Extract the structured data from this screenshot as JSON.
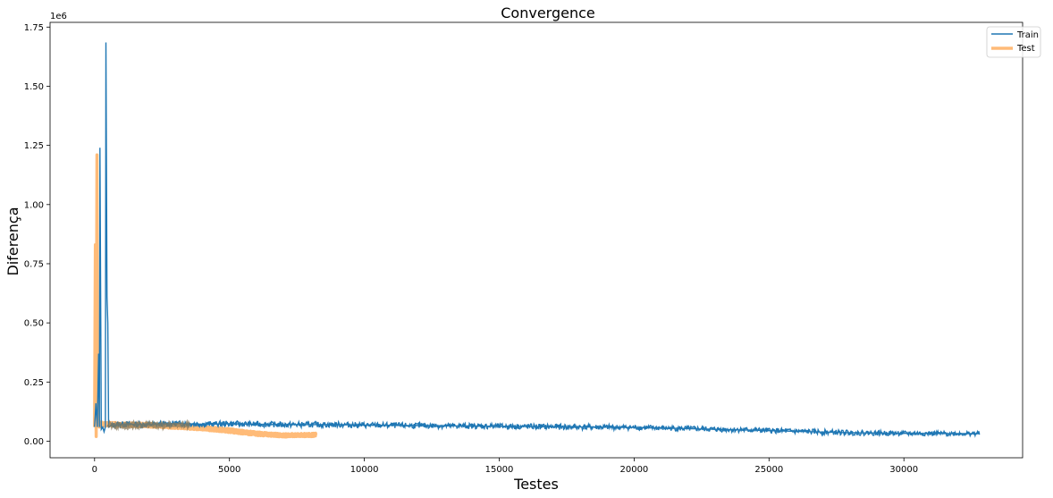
{
  "chart_data": {
    "type": "line",
    "title": "Convergence",
    "xlabel": "Testes",
    "ylabel": "Diferença",
    "y_offset_text": "1e6",
    "xlim": [
      -1650,
      34400
    ],
    "ylim": [
      -70000,
      1770000
    ],
    "x_ticks": [
      0,
      5000,
      10000,
      15000,
      20000,
      25000,
      30000
    ],
    "x_tick_labels": [
      "0",
      "5000",
      "10000",
      "15000",
      "20000",
      "25000",
      "30000"
    ],
    "y_ticks": [
      0,
      250000,
      500000,
      750000,
      1000000,
      1250000,
      1500000,
      1750000
    ],
    "y_tick_labels": [
      "0.00",
      "0.25",
      "0.50",
      "0.75",
      "1.00",
      "1.25",
      "1.50",
      "1.75"
    ],
    "grid": false,
    "legend": "upper right",
    "series": [
      {
        "name": "Train",
        "color": "#1f77b4",
        "x": [
          0,
          50,
          100,
          150,
          180,
          200,
          250,
          300,
          350,
          400,
          420,
          460,
          490,
          520,
          600,
          800,
          1000,
          2000,
          3000,
          4000,
          5000,
          6000,
          7000,
          8000,
          9000,
          10000,
          12000,
          14000,
          16000,
          18000,
          20000,
          22000,
          24000,
          26000,
          28000,
          30000,
          32000,
          32800
        ],
        "values": [
          60000,
          160000,
          60000,
          370000,
          60000,
          1240000,
          50000,
          60000,
          40000,
          60000,
          1685000,
          610000,
          500000,
          60000,
          65000,
          70000,
          72000,
          70000,
          75000,
          72000,
          74000,
          72000,
          70000,
          70000,
          70000,
          68000,
          66000,
          64000,
          62000,
          60000,
          58000,
          53000,
          48000,
          42000,
          36000,
          33000,
          32000,
          32000
        ],
        "noise": [
          0,
          0,
          0,
          0,
          0,
          0,
          0,
          0,
          0,
          0,
          0,
          0,
          0,
          0,
          12000,
          12000,
          12000,
          12000,
          12000,
          12000,
          12000,
          12000,
          12000,
          12000,
          12000,
          12000,
          12000,
          12000,
          12000,
          12000,
          11000,
          11000,
          11000,
          11000,
          11000,
          10000,
          10000,
          10000
        ]
      },
      {
        "name": "Test",
        "color": "#ffbb78",
        "x": [
          0,
          30,
          60,
          90,
          110,
          140,
          180,
          220,
          300,
          500,
          1000,
          2000,
          3000,
          4000,
          5000,
          5500,
          6000,
          6500,
          7000,
          7500,
          8200
        ],
        "values": [
          60000,
          830000,
          20000,
          1210000,
          430000,
          100000,
          60000,
          80000,
          70000,
          72000,
          70000,
          68000,
          62000,
          55000,
          45000,
          38000,
          32000,
          28000,
          25000,
          25000,
          27000
        ],
        "noise": [
          0,
          0,
          0,
          0,
          0,
          0,
          0,
          8000,
          8000,
          8000,
          8000,
          8000,
          8000,
          8000,
          8000,
          8000,
          8000,
          7000,
          7000,
          7000,
          7000
        ]
      }
    ]
  }
}
